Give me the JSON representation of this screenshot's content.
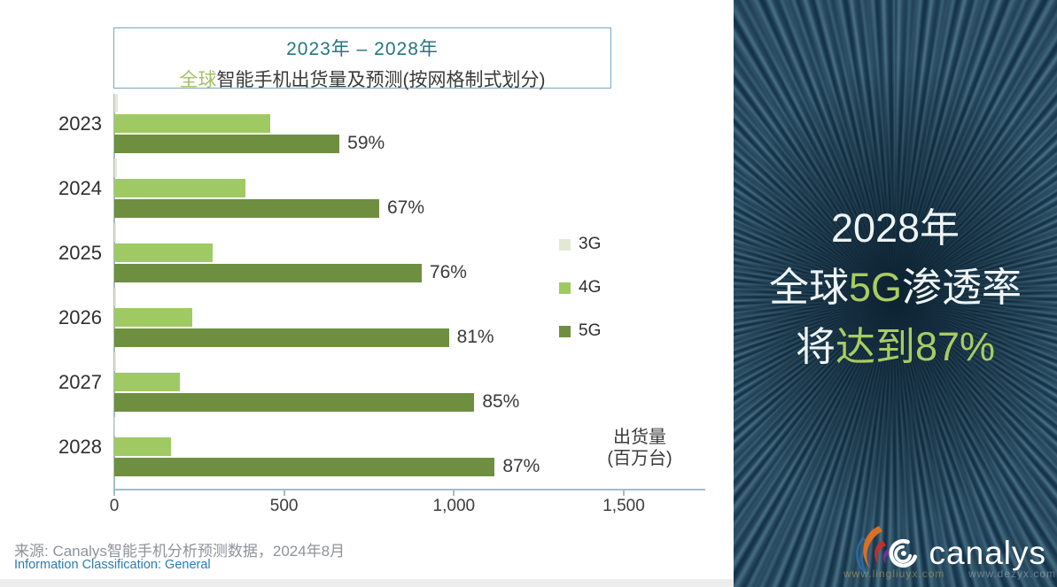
{
  "title": {
    "line1": "2023年 – 2028年",
    "line2_accent": "全球",
    "line2_rest": "智能手机出货量及预测(按网格制式划分)"
  },
  "chart_data": {
    "type": "bar",
    "orientation": "horizontal",
    "title": "2023年 – 2028年 全球智能手机出货量及预测(按网格制式划分)",
    "categories": [
      "2023",
      "2024",
      "2025",
      "2026",
      "2027",
      "2028"
    ],
    "series": [
      {
        "name": "3G",
        "color": "#e2e8d5",
        "values": [
          10,
          8,
          6,
          5,
          4,
          3
        ]
      },
      {
        "name": "4G",
        "color": "#9fca63",
        "values": [
          460,
          385,
          290,
          230,
          192,
          166
        ]
      },
      {
        "name": "5G",
        "color": "#6f8f40",
        "values": [
          663,
          780,
          905,
          985,
          1060,
          1120
        ]
      }
    ],
    "bar_labels": {
      "series": "5G",
      "values": [
        "59%",
        "67%",
        "76%",
        "81%",
        "85%",
        "87%"
      ]
    },
    "xlim": [
      0,
      1500
    ],
    "x_tick_values": [
      0,
      500,
      1000,
      1500
    ],
    "x_tick_labels": [
      "0",
      "500",
      "1,000",
      "1,500"
    ],
    "value_axis_label_line1": "出货量",
    "value_axis_label_line2": "(百万台)",
    "legend_position": "right",
    "grid": false
  },
  "footer": {
    "source": "来源: Canalys智能手机分析预测数据，2024年8月",
    "classification": "Information Classification: General"
  },
  "panel": {
    "line1": "2028年",
    "line2_pre": "全球",
    "line2_accent": "5G",
    "line2_post": "渗透率",
    "line3_pre": "将",
    "line3_accent": "达到87%",
    "logo_text": "canalys",
    "watermark1": "www.lingliuyx.com",
    "watermark2": "www.dezyx.com"
  },
  "colors": {
    "accent_green": "#a2c266",
    "bar_4g": "#9fca63",
    "bar_5g": "#6f8f40",
    "bar_3g": "#e2e8d5",
    "title_teal": "#23767f",
    "axis": "#a3bdc9",
    "panel_bg": "#123147",
    "panel_accent": "#a8cc61",
    "classification_blue": "#2b7cb4"
  }
}
